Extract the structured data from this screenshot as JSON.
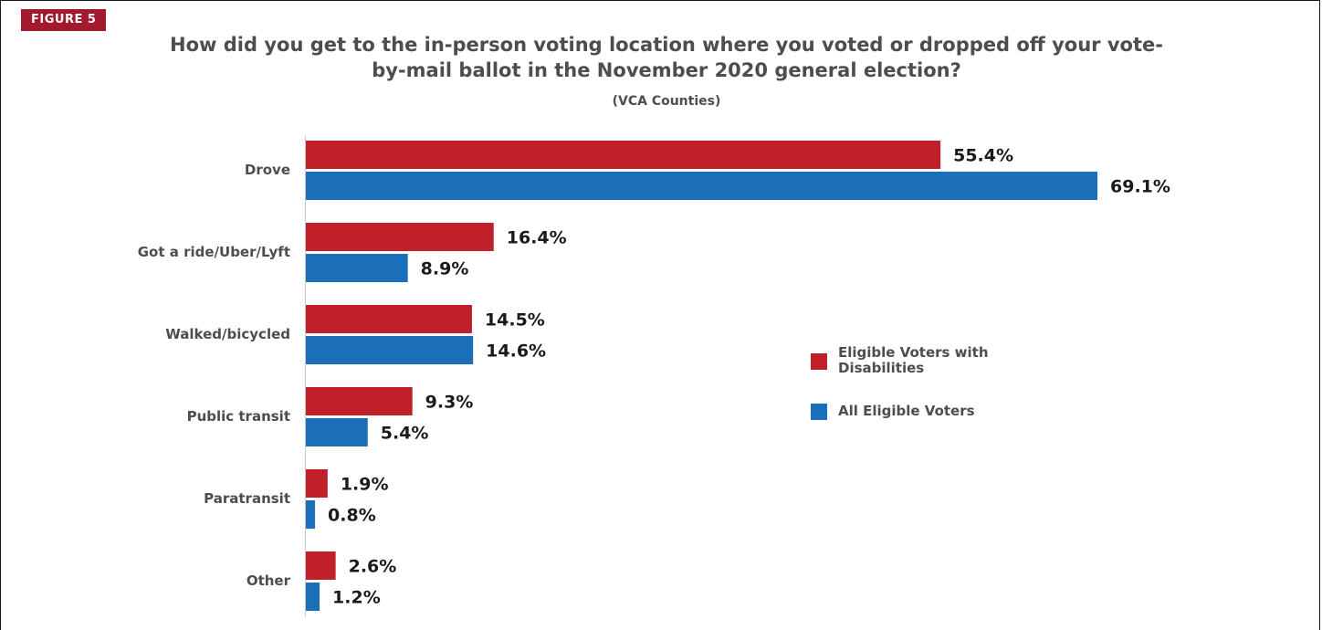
{
  "figure_badge": "FIGURE 5",
  "chart_data": {
    "type": "bar",
    "orientation": "horizontal",
    "title": "How did you get to the in-person voting location where you voted or dropped off your vote-by-mail ballot in the November 2020 general election?",
    "subtitle": "(VCA Counties)",
    "categories": [
      "Drove",
      "Got a ride/Uber/Lyft",
      "Walked/bicycled",
      "Public transit",
      "Paratransit",
      "Other"
    ],
    "series": [
      {
        "name": "Eligible Voters with Disabilities",
        "color": "#c0202a",
        "values": [
          55.4,
          16.4,
          14.5,
          9.3,
          1.9,
          2.6
        ],
        "labels": [
          "55.4%",
          "16.4%",
          "14.5%",
          "9.3%",
          "1.9%",
          "2.6%"
        ]
      },
      {
        "name": "All Eligible Voters",
        "color": "#1b6fb8",
        "values": [
          69.1,
          8.9,
          14.6,
          5.4,
          0.8,
          1.2
        ],
        "labels": [
          "69.1%",
          "8.9%",
          "14.6%",
          "5.4%",
          "0.8%",
          "1.2%"
        ]
      }
    ],
    "xlim": [
      0,
      70
    ],
    "unit": "%",
    "grid": false,
    "legend_position": "right"
  }
}
